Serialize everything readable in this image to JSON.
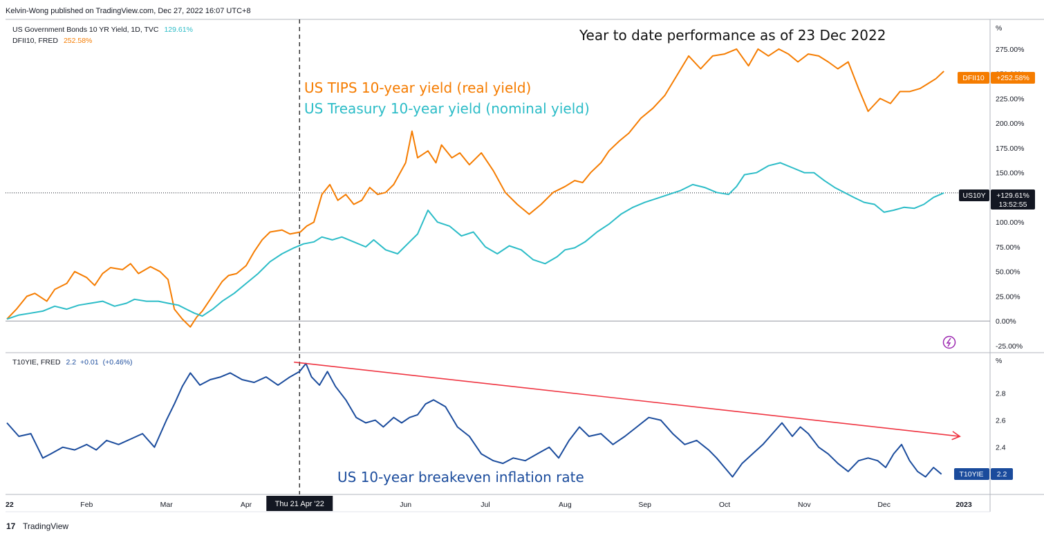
{
  "header": {
    "publisher_line": "Kelvin-Wong published on TradingView.com, Dec 27, 2022 16:07 UTC+8"
  },
  "footer": {
    "brand": "TradingView",
    "logo_glyph": "17"
  },
  "colors": {
    "tips": "#f57c00",
    "treasury": "#2bbcc7",
    "breakeven": "#1a4b9c",
    "trend": "#ef3340",
    "grid": "#e0e3eb",
    "divider": "#b2b5be",
    "tag_dark": "#131722",
    "tag_blue": "#1a4b9c",
    "tag_orange": "#f57c00",
    "lightning": "#9c27b0"
  },
  "upper_legend": {
    "line1_label": "US Government Bonds 10 YR Yield, 1D, TVC",
    "line1_value": "129.61%",
    "line2_label": "DFII10, FRED",
    "line2_value": "252.58%"
  },
  "lower_legend": {
    "label": "T10YIE, FRED",
    "value": "2.2",
    "change": "+0.01",
    "change_pct": "(+0.46%)"
  },
  "annotations": {
    "title": "Year to date performance as of 23 Dec 2022",
    "tips_label": "US TIPS 10-year yield (real yield)",
    "treasury_label": "US Treasury 10-year yield (nominal yield)",
    "breakeven_label": "US 10-year breakeven inflation rate"
  },
  "price_tags": {
    "dfii10_name": "DFII10",
    "dfii10_value": "+252.58%",
    "us10y_name": "US10Y",
    "us10y_value": "+129.61%",
    "us10y_countdown": "13:52:55",
    "t10yie_name": "T10YIE",
    "t10yie_value": "2.2"
  },
  "crosshair": {
    "date_label": "Thu 21 Apr '22"
  },
  "chart_data": [
    {
      "type": "line",
      "title": "Year to date performance as of 23 Dec 2022",
      "ylabel": "%",
      "ylim": [
        -32,
        305
      ],
      "yticks": [
        275,
        250,
        225,
        200,
        175,
        150,
        125,
        100,
        75,
        50,
        25,
        0,
        -25
      ],
      "ytick_labels": [
        "275.00%",
        "250.00%",
        "225.00%",
        "200.00%",
        "175.00%",
        "150.00%",
        "125.00%",
        "100.00%",
        "75.00%",
        "50.00%",
        "25.00%",
        "0.00%",
        "-25.00%"
      ],
      "x_unit": "months since 1 Jan 2022",
      "series": [
        {
          "name": "US TIPS 10-year yield (real yield) — DFII10",
          "x": [
            0.0,
            0.12,
            0.25,
            0.35,
            0.5,
            0.6,
            0.75,
            0.85,
            1.0,
            1.1,
            1.2,
            1.3,
            1.45,
            1.55,
            1.65,
            1.8,
            1.92,
            2.02,
            2.1,
            2.2,
            2.3,
            2.38,
            2.45,
            2.6,
            2.7,
            2.78,
            2.88,
            3.0,
            3.1,
            3.2,
            3.3,
            3.45,
            3.55,
            3.68,
            3.76,
            3.85,
            3.95,
            4.05,
            4.15,
            4.25,
            4.35,
            4.45,
            4.55,
            4.65,
            4.75,
            4.85,
            5.0,
            5.08,
            5.15,
            5.28,
            5.38,
            5.45,
            5.58,
            5.68,
            5.8,
            5.95,
            6.1,
            6.25,
            6.4,
            6.55,
            6.7,
            6.85,
            7.0,
            7.12,
            7.22,
            7.32,
            7.45,
            7.55,
            7.68,
            7.8,
            7.95,
            8.1,
            8.25,
            8.4,
            8.55,
            8.7,
            8.85,
            9.0,
            9.15,
            9.3,
            9.42,
            9.55,
            9.68,
            9.8,
            9.92,
            10.05,
            10.18,
            10.3,
            10.42,
            10.55,
            10.68,
            10.8,
            10.95,
            11.08,
            11.2,
            11.32,
            11.45,
            11.55,
            11.65,
            11.75
          ],
          "values": [
            2,
            12,
            25,
            28,
            20,
            32,
            38,
            50,
            44,
            36,
            48,
            54,
            52,
            58,
            48,
            55,
            50,
            42,
            12,
            2,
            -6,
            4,
            10,
            28,
            40,
            46,
            48,
            56,
            70,
            82,
            90,
            92,
            88,
            90,
            96,
            100,
            128,
            138,
            122,
            128,
            118,
            122,
            135,
            128,
            130,
            138,
            160,
            192,
            165,
            172,
            160,
            178,
            165,
            170,
            158,
            170,
            152,
            130,
            118,
            108,
            118,
            130,
            136,
            142,
            140,
            150,
            160,
            172,
            182,
            190,
            205,
            215,
            228,
            248,
            268,
            255,
            268,
            270,
            275,
            258,
            275,
            268,
            275,
            270,
            262,
            270,
            268,
            262,
            255,
            262,
            235,
            212,
            225,
            220,
            232,
            232,
            235,
            240,
            245,
            252.58
          ]
        },
        {
          "name": "US Treasury 10-year yield (nominal yield) — US10Y",
          "x": [
            0.0,
            0.15,
            0.3,
            0.45,
            0.6,
            0.75,
            0.9,
            1.05,
            1.2,
            1.35,
            1.5,
            1.6,
            1.75,
            1.9,
            2.02,
            2.15,
            2.25,
            2.35,
            2.45,
            2.58,
            2.7,
            2.85,
            3.0,
            3.15,
            3.3,
            3.45,
            3.6,
            3.72,
            3.85,
            3.95,
            4.08,
            4.2,
            4.35,
            4.5,
            4.6,
            4.75,
            4.9,
            5.05,
            5.15,
            5.28,
            5.4,
            5.55,
            5.7,
            5.85,
            6.0,
            6.15,
            6.3,
            6.45,
            6.6,
            6.75,
            6.9,
            7.0,
            7.12,
            7.25,
            7.4,
            7.55,
            7.7,
            7.85,
            8.0,
            8.15,
            8.3,
            8.45,
            8.6,
            8.75,
            8.9,
            9.05,
            9.15,
            9.25,
            9.4,
            9.55,
            9.7,
            9.85,
            10.0,
            10.12,
            10.25,
            10.38,
            10.5,
            10.62,
            10.75,
            10.88,
            11.0,
            11.12,
            11.25,
            11.38,
            11.5,
            11.62,
            11.75
          ],
          "values": [
            2,
            6,
            8,
            10,
            15,
            12,
            16,
            18,
            20,
            15,
            18,
            22,
            20,
            20,
            18,
            16,
            12,
            8,
            5,
            12,
            20,
            28,
            38,
            48,
            60,
            68,
            74,
            78,
            80,
            85,
            82,
            85,
            80,
            75,
            82,
            72,
            68,
            80,
            88,
            112,
            100,
            96,
            86,
            90,
            75,
            68,
            76,
            72,
            62,
            58,
            65,
            72,
            74,
            80,
            90,
            98,
            108,
            115,
            120,
            124,
            128,
            132,
            138,
            135,
            130,
            128,
            136,
            148,
            150,
            157,
            160,
            155,
            150,
            150,
            142,
            135,
            130,
            125,
            120,
            118,
            110,
            112,
            115,
            114,
            118,
            125,
            129.61
          ]
        }
      ]
    },
    {
      "type": "line",
      "title": "US 10-year breakeven inflation rate",
      "ylabel": "%",
      "ylim": [
        2.05,
        3.1
      ],
      "yticks": [
        2.8,
        2.6,
        2.4
      ],
      "ytick_labels": [
        "2.8",
        "2.6",
        "2.4"
      ],
      "x_unit": "months since 1 Jan 2022",
      "series": [
        {
          "name": "US 10-year breakeven inflation rate — T10YIE",
          "x": [
            0.0,
            0.15,
            0.3,
            0.45,
            0.55,
            0.7,
            0.85,
            1.0,
            1.12,
            1.25,
            1.4,
            1.55,
            1.7,
            1.85,
            2.0,
            2.1,
            2.2,
            2.3,
            2.42,
            2.55,
            2.68,
            2.8,
            2.95,
            3.1,
            3.25,
            3.4,
            3.55,
            3.67,
            3.75,
            3.82,
            3.92,
            4.02,
            4.12,
            4.25,
            4.38,
            4.5,
            4.62,
            4.72,
            4.85,
            4.95,
            5.05,
            5.15,
            5.25,
            5.35,
            5.5,
            5.65,
            5.8,
            5.95,
            6.1,
            6.22,
            6.35,
            6.5,
            6.65,
            6.8,
            6.92,
            7.05,
            7.18,
            7.3,
            7.45,
            7.6,
            7.75,
            7.9,
            8.05,
            8.2,
            8.35,
            8.5,
            8.65,
            8.8,
            8.9,
            9.0,
            9.1,
            9.22,
            9.35,
            9.48,
            9.6,
            9.72,
            9.85,
            9.95,
            10.05,
            10.18,
            10.3,
            10.42,
            10.55,
            10.68,
            10.8,
            10.92,
            11.02,
            11.12,
            11.22,
            11.32,
            11.42,
            11.52,
            11.62,
            11.72
          ],
          "values": [
            2.58,
            2.48,
            2.5,
            2.32,
            2.35,
            2.4,
            2.38,
            2.42,
            2.38,
            2.45,
            2.42,
            2.46,
            2.5,
            2.4,
            2.6,
            2.72,
            2.85,
            2.95,
            2.86,
            2.9,
            2.92,
            2.95,
            2.9,
            2.88,
            2.92,
            2.86,
            2.92,
            2.96,
            3.02,
            2.92,
            2.86,
            2.96,
            2.85,
            2.75,
            2.62,
            2.58,
            2.6,
            2.55,
            2.62,
            2.58,
            2.62,
            2.64,
            2.72,
            2.75,
            2.7,
            2.55,
            2.48,
            2.35,
            2.3,
            2.28,
            2.32,
            2.3,
            2.35,
            2.4,
            2.32,
            2.45,
            2.55,
            2.48,
            2.5,
            2.42,
            2.48,
            2.55,
            2.62,
            2.6,
            2.5,
            2.42,
            2.45,
            2.38,
            2.32,
            2.25,
            2.18,
            2.28,
            2.35,
            2.42,
            2.5,
            2.58,
            2.48,
            2.55,
            2.5,
            2.4,
            2.35,
            2.28,
            2.22,
            2.3,
            2.32,
            2.3,
            2.25,
            2.35,
            2.42,
            2.3,
            2.22,
            2.18,
            2.25,
            2.2
          ]
        },
        {
          "name": "Trend line",
          "x": [
            3.6,
            11.95
          ],
          "values": [
            3.03,
            2.48
          ]
        }
      ]
    }
  ],
  "x_axis": {
    "ticks": [
      {
        "label": "22",
        "x": 0
      },
      {
        "label": "Feb",
        "x": 1
      },
      {
        "label": "Mar",
        "x": 2
      },
      {
        "label": "Apr",
        "x": 3
      },
      {
        "label": "Jun",
        "x": 5
      },
      {
        "label": "Jul",
        "x": 6
      },
      {
        "label": "Aug",
        "x": 7
      },
      {
        "label": "Sep",
        "x": 8
      },
      {
        "label": "Oct",
        "x": 9
      },
      {
        "label": "Nov",
        "x": 10
      },
      {
        "label": "Dec",
        "x": 11
      },
      {
        "label": "2023",
        "x": 12
      }
    ],
    "crosshair_x": 3.67
  }
}
